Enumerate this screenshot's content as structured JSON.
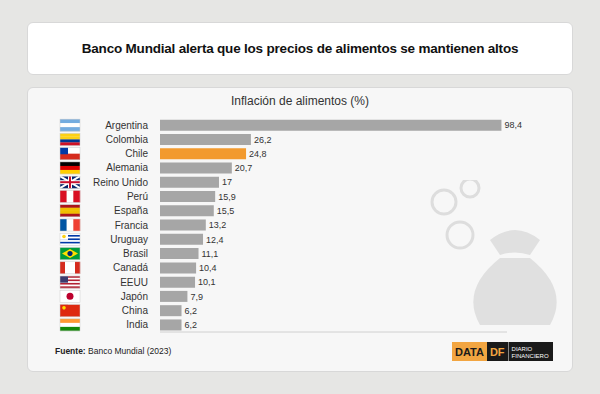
{
  "chart_data": {
    "type": "bar",
    "orientation": "horizontal",
    "title": "Banco Mundial alerta que los precios de alimentos se mantienen altos",
    "subtitle": "Inflación de alimentos (%)",
    "source": "Fuente: Banco Mundial (2023)",
    "logo": [
      "DATA",
      "DF",
      "DIARIO",
      "FINANCIERO"
    ],
    "categories": [
      "Argentina",
      "Colombia",
      "Chile",
      "Alemania",
      "Reino Unido",
      "Perú",
      "España",
      "Francia",
      "Uruguay",
      "Brasil",
      "Canadá",
      "EEUU",
      "Japón",
      "China",
      "India"
    ],
    "values": [
      98.4,
      26.2,
      24.8,
      20.7,
      17,
      15.9,
      15.5,
      13.2,
      12.4,
      11.1,
      10.4,
      10.1,
      7.9,
      6.2,
      6.2
    ],
    "value_labels": [
      "98,4",
      "26,2",
      "24,8",
      "20,7",
      "17",
      "15,9",
      "15,5",
      "13,2",
      "12,4",
      "11,1",
      "10,4",
      "10,1",
      "7,9",
      "6,2",
      "6,2"
    ],
    "colors": [
      "#a6a6a6",
      "#a6a6a6",
      "#f29a2e",
      "#a6a6a6",
      "#a6a6a6",
      "#a6a6a6",
      "#a6a6a6",
      "#a6a6a6",
      "#a6a6a6",
      "#a6a6a6",
      "#a6a6a6",
      "#a6a6a6",
      "#a6a6a6",
      "#a6a6a6",
      "#a6a6a6"
    ],
    "xlim": [
      0,
      100
    ],
    "xticks": [],
    "grid": false,
    "data_labels": true,
    "tick_labels": "y"
  }
}
